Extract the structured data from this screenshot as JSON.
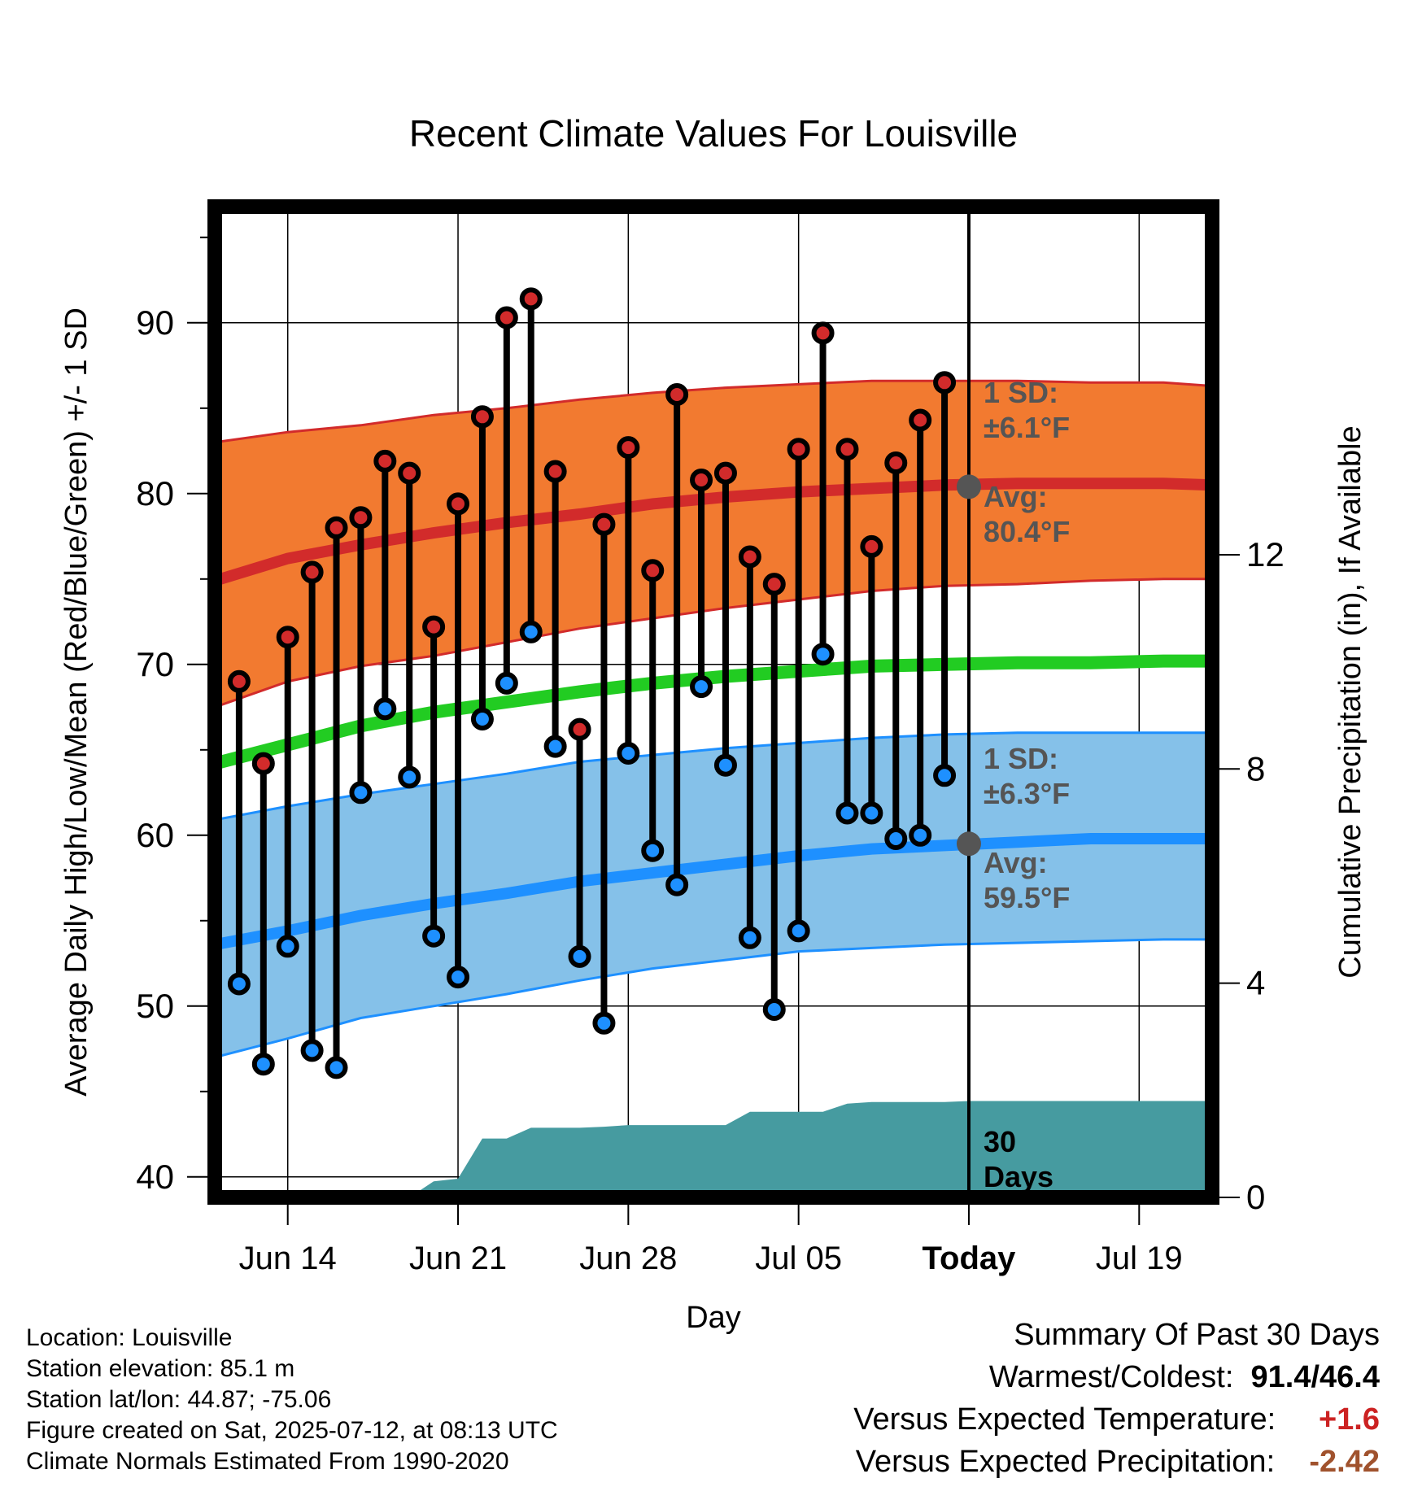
{
  "colors": {
    "high_band": "#f27a30",
    "high_avg": "#d22b2b",
    "low_band": "#85c1e9",
    "low_avg": "#1e90ff",
    "mean": "#22cc22",
    "precip": "#469ba0",
    "high_marker": "#d22b2b",
    "low_marker": "#1e90ff",
    "annotation": "#555555",
    "temp_departure": "#cc2222",
    "precip_departure": "#a0522d"
  },
  "chart_data": {
    "type": "line",
    "title": "Recent Climate Values For Louisville",
    "xlabel": "Day",
    "ylabel": "Average Daily High/Low/Mean (Red/Blue/Green) +/- 1 SD",
    "y2label": "Cumulative Precipitation (in), If Available",
    "ylim": [
      38.8,
      96.8
    ],
    "y2lim": [
      0,
      18.5
    ],
    "yticks": [
      40,
      50,
      60,
      70,
      80,
      90
    ],
    "y2ticks": [
      0,
      4,
      8,
      12
    ],
    "xlim": [
      "2025-06-11",
      "2025-07-22"
    ],
    "xticks": [
      {
        "date": "2025-06-14",
        "label": "Jun 14"
      },
      {
        "date": "2025-06-21",
        "label": "Jun 21"
      },
      {
        "date": "2025-06-28",
        "label": "Jun 28"
      },
      {
        "date": "2025-07-05",
        "label": "Jul 05"
      },
      {
        "date": "2025-07-12",
        "label": "Today"
      },
      {
        "date": "2025-07-19",
        "label": "Jul 19"
      }
    ],
    "grid": true,
    "observations": {
      "dates": [
        "2025-06-12",
        "2025-06-13",
        "2025-06-14",
        "2025-06-15",
        "2025-06-16",
        "2025-06-17",
        "2025-06-18",
        "2025-06-19",
        "2025-06-20",
        "2025-06-21",
        "2025-06-22",
        "2025-06-23",
        "2025-06-24",
        "2025-06-25",
        "2025-06-26",
        "2025-06-27",
        "2025-06-28",
        "2025-06-29",
        "2025-06-30",
        "2025-07-01",
        "2025-07-02",
        "2025-07-03",
        "2025-07-04",
        "2025-07-05",
        "2025-07-06",
        "2025-07-07",
        "2025-07-08",
        "2025-07-09",
        "2025-07-10",
        "2025-07-11"
      ],
      "high": [
        69.0,
        64.2,
        71.6,
        75.4,
        78.0,
        78.6,
        81.9,
        81.2,
        72.2,
        79.4,
        84.5,
        90.3,
        91.4,
        81.3,
        66.2,
        78.2,
        82.7,
        75.5,
        85.8,
        80.8,
        81.2,
        76.3,
        74.7,
        82.6,
        89.4,
        82.6,
        76.9,
        81.8,
        84.3,
        86.5
      ],
      "low": [
        51.3,
        46.6,
        53.5,
        47.4,
        46.4,
        62.5,
        67.4,
        63.4,
        54.1,
        51.7,
        66.8,
        68.9,
        71.9,
        65.2,
        52.9,
        49.0,
        64.8,
        59.1,
        57.1,
        68.7,
        64.1,
        54.0,
        49.8,
        54.4,
        70.6,
        61.3,
        61.3,
        59.8,
        60.0,
        63.5
      ]
    },
    "normals": {
      "dates": [
        "2025-06-11",
        "2025-06-14",
        "2025-06-17",
        "2025-06-20",
        "2025-06-23",
        "2025-06-26",
        "2025-06-29",
        "2025-07-02",
        "2025-07-05",
        "2025-07-08",
        "2025-07-11",
        "2025-07-14",
        "2025-07-17",
        "2025-07-20",
        "2025-07-22"
      ],
      "high_avg": [
        74.9,
        76.2,
        77.0,
        77.7,
        78.3,
        78.8,
        79.4,
        79.8,
        80.1,
        80.3,
        80.5,
        80.6,
        80.6,
        80.6,
        80.5
      ],
      "high_upper": [
        83.0,
        83.6,
        84.0,
        84.6,
        85.0,
        85.5,
        85.9,
        86.2,
        86.4,
        86.6,
        86.6,
        86.6,
        86.5,
        86.5,
        86.3
      ],
      "high_lower": [
        67.5,
        69.0,
        69.9,
        70.5,
        71.3,
        72.1,
        72.7,
        73.3,
        73.8,
        74.3,
        74.6,
        74.7,
        74.9,
        75.0,
        75.0
      ],
      "mean": [
        64.2,
        65.3,
        66.4,
        67.2,
        67.8,
        68.4,
        68.9,
        69.3,
        69.6,
        69.9,
        70.0,
        70.1,
        70.1,
        70.2,
        70.2
      ],
      "low_avg": [
        53.6,
        54.4,
        55.3,
        56.0,
        56.6,
        57.3,
        57.8,
        58.3,
        58.8,
        59.2,
        59.4,
        59.6,
        59.8,
        59.8,
        59.8
      ],
      "low_upper": [
        60.9,
        61.7,
        62.4,
        63.0,
        63.6,
        64.3,
        64.7,
        65.1,
        65.4,
        65.7,
        65.9,
        66.0,
        66.0,
        66.0,
        66.0
      ],
      "low_lower": [
        47.0,
        48.1,
        49.3,
        50.0,
        50.7,
        51.5,
        52.2,
        52.7,
        53.2,
        53.4,
        53.6,
        53.7,
        53.8,
        53.9,
        53.9
      ]
    },
    "precip_cumulative": {
      "dates": [
        "2025-06-19",
        "2025-06-20",
        "2025-06-21",
        "2025-06-22",
        "2025-06-23",
        "2025-06-24",
        "2025-06-25",
        "2025-06-26",
        "2025-06-27",
        "2025-06-28",
        "2025-06-29",
        "2025-06-30",
        "2025-07-01",
        "2025-07-02",
        "2025-07-03",
        "2025-07-04",
        "2025-07-05",
        "2025-07-06",
        "2025-07-07",
        "2025-07-08",
        "2025-07-09",
        "2025-07-10",
        "2025-07-11",
        "2025-07-12",
        "2025-07-22"
      ],
      "values": [
        0.0,
        0.3,
        0.35,
        1.1,
        1.1,
        1.3,
        1.3,
        1.3,
        1.32,
        1.35,
        1.35,
        1.35,
        1.35,
        1.35,
        1.6,
        1.6,
        1.6,
        1.6,
        1.75,
        1.78,
        1.78,
        1.78,
        1.78,
        1.8,
        1.8
      ]
    },
    "today_markers": {
      "high_avg": 80.4,
      "low_avg": 59.5
    },
    "annotations": {
      "high_sd_1": "1 SD:",
      "high_sd_2": "±6.1°F",
      "high_avg_1": "Avg:",
      "high_avg_2": "80.4°F",
      "low_sd_1": "1 SD:",
      "low_sd_2": "±6.3°F",
      "low_avg_1": "Avg:",
      "low_avg_2": "59.5°F",
      "days_1": "30",
      "days_2": "Days"
    }
  },
  "info": {
    "location": "Location: Louisville",
    "elevation": "Station elevation: 85.1 m",
    "latlon": "Station lat/lon: 44.87; -75.06",
    "created": "Figure created on Sat, 2025-07-12, at 08:13 UTC",
    "normals": "Climate Normals Estimated From 1990-2020"
  },
  "summary": {
    "title": "Summary Of Past 30 Days",
    "warmest_coldest_label": "Warmest/Coldest:",
    "warmest_coldest_value": "91.4/46.4",
    "temp_label": "Versus Expected Temperature:",
    "temp_value": "+1.6",
    "precip_label": "Versus Expected Precipitation:",
    "precip_value": "-2.42"
  }
}
